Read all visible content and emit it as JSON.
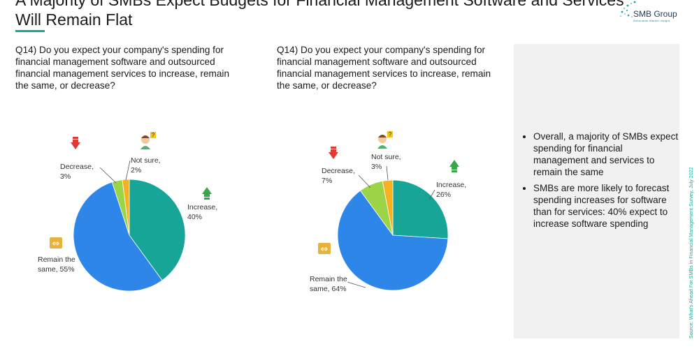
{
  "header": {
    "title_line1": "A Majority of SMBs Expect Budgets for Financial  Management Software and Services",
    "title_line2": "Will Remain Flat",
    "accent_color": "#16a596"
  },
  "logo": {
    "name": "SMB Group",
    "tagline": "Actionable Market Insight",
    "icon": "dots-swirl-icon"
  },
  "chart_data": [
    {
      "type": "pie",
      "question": "Q14) Do you expect your company's spending for financial management software and outsourced financial management services to increase, remain the same, or decrease?",
      "slices": [
        {
          "label": "Increase",
          "value": 40,
          "color": "#16a596",
          "icon": "arrow-up-icon",
          "text": "Increase, 40%"
        },
        {
          "label": "Remain the same",
          "value": 55,
          "color": "#2e86e8",
          "icon": "double-arrow-icon",
          "text": "Remain the same, 55%"
        },
        {
          "label": "Decrease",
          "value": 3,
          "color": "#9bd447",
          "icon": "arrow-down-icon",
          "text": "Decrease, 3%"
        },
        {
          "label": "Not sure",
          "value": 2,
          "color": "#f5b120",
          "icon": "person-question-icon",
          "text": "Not sure, 2%"
        }
      ]
    },
    {
      "type": "pie",
      "question": "Q14) Do you expect your company's spending for financial management software and outsourced financial management services to increase, remain the same, or decrease?",
      "slices": [
        {
          "label": "Increase",
          "value": 26,
          "color": "#16a596",
          "icon": "arrow-up-icon",
          "text": "Increase, 26%"
        },
        {
          "label": "Remain the same",
          "value": 64,
          "color": "#2e86e8",
          "icon": "double-arrow-icon",
          "text": "Remain the same, 64%"
        },
        {
          "label": "Decrease",
          "value": 7,
          "color": "#9bd447",
          "icon": "arrow-down-icon",
          "text": "Decrease, 7%"
        },
        {
          "label": "Not sure",
          "value": 3,
          "color": "#f5b120",
          "icon": "person-question-icon",
          "text": "Not sure, 3%"
        }
      ]
    }
  ],
  "insights": [
    "Overall, a majority of SMBs expect spending for financial management and services to remain the same",
    "SMBs are more likely to forecast spending increases for software than for services: 40% expect to increase software spending"
  ],
  "source": "Source: What's Ahead For SMBs in Financial Management Survey, July 2022"
}
